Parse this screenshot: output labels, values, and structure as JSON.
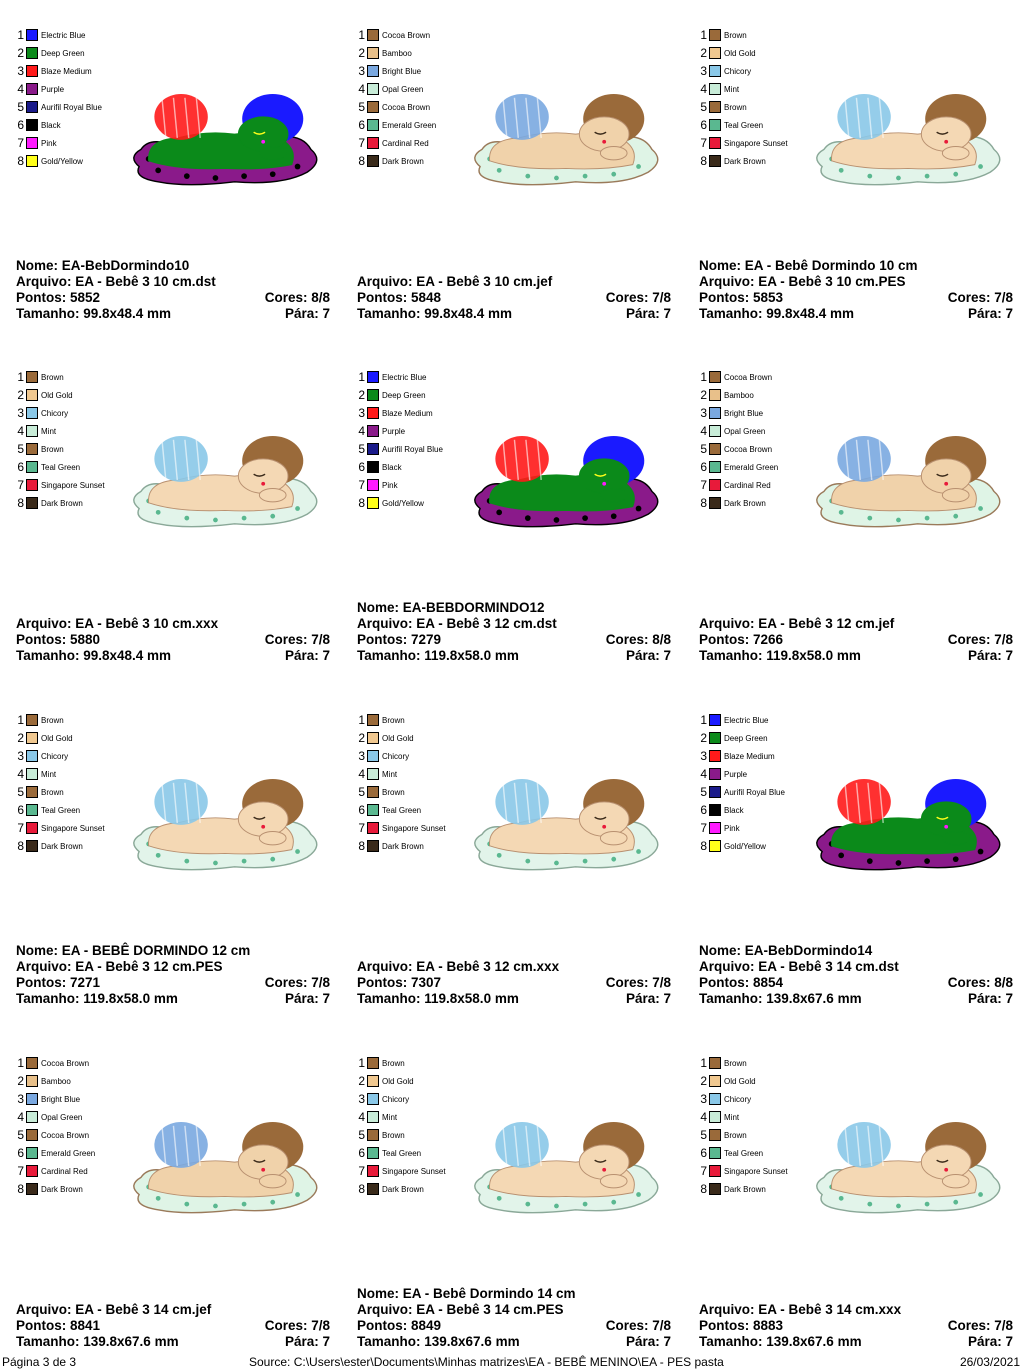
{
  "palettes": {
    "A": [
      {
        "name": "Electric Blue",
        "color": "#1a1aff"
      },
      {
        "name": "Deep Green",
        "color": "#0b8a1a"
      },
      {
        "name": "Blaze Medium",
        "color": "#ff1a1a"
      },
      {
        "name": "Purple",
        "color": "#8a1a8a"
      },
      {
        "name": "Aurifil Royal Blue",
        "color": "#1a1a8a"
      },
      {
        "name": "Black",
        "color": "#000000"
      },
      {
        "name": "Pink",
        "color": "#ff1aff"
      },
      {
        "name": "Gold/Yellow",
        "color": "#ffff1a"
      }
    ],
    "B": [
      {
        "name": "Cocoa Brown",
        "color": "#9a6a3a"
      },
      {
        "name": "Bamboo",
        "color": "#e8c08a"
      },
      {
        "name": "Bright Blue",
        "color": "#7aa8e0"
      },
      {
        "name": "Opal Green",
        "color": "#c8ecd8"
      },
      {
        "name": "Cocoa Brown",
        "color": "#9a6a3a"
      },
      {
        "name": "Emerald Green",
        "color": "#5ab890"
      },
      {
        "name": "Cardinal Red",
        "color": "#e81a3a"
      },
      {
        "name": "Dark Brown",
        "color": "#3a2a1a"
      }
    ],
    "C": [
      {
        "name": "Brown",
        "color": "#9a6a3a"
      },
      {
        "name": "Old Gold",
        "color": "#f0c890"
      },
      {
        "name": "Chicory",
        "color": "#8ac8e8"
      },
      {
        "name": "Mint",
        "color": "#c8ecd8"
      },
      {
        "name": "Brown",
        "color": "#9a6a3a"
      },
      {
        "name": "Teal Green",
        "color": "#5ab890"
      },
      {
        "name": "Singapore Sunset",
        "color": "#e81a3a"
      },
      {
        "name": "Dark Brown",
        "color": "#3a2a1a"
      }
    ]
  },
  "cells": [
    {
      "palette": "A",
      "lines": [
        {
          "l": "Nome: EA-BebDormindo10",
          "r": ""
        },
        {
          "l": "Arquivo: EA - Bebê 3 10 cm.dst",
          "r": ""
        },
        {
          "l": "Pontos: 5852",
          "r": "Cores: 8/8"
        },
        {
          "l": "Tamanho: 99.8x48.4 mm",
          "r": "Pára: 7"
        }
      ]
    },
    {
      "palette": "B",
      "lines": [
        {
          "l": "Arquivo: EA - Bebê 3 10 cm.jef",
          "r": ""
        },
        {
          "l": "Pontos: 5848",
          "r": "Cores: 7/8"
        },
        {
          "l": "Tamanho: 99.8x48.4 mm",
          "r": "Pára: 7"
        }
      ]
    },
    {
      "palette": "C",
      "lines": [
        {
          "l": "Nome: EA - Bebê Dormindo 10 cm",
          "r": ""
        },
        {
          "l": "Arquivo: EA - Bebê 3 10 cm.PES",
          "r": ""
        },
        {
          "l": "Pontos: 5853",
          "r": "Cores: 7/8"
        },
        {
          "l": "Tamanho: 99.8x48.4 mm",
          "r": "Pára: 7"
        }
      ]
    },
    {
      "palette": "C",
      "lines": [
        {
          "l": "Arquivo: EA - Bebê 3 10 cm.xxx",
          "r": ""
        },
        {
          "l": "Pontos: 5880",
          "r": "Cores: 7/8"
        },
        {
          "l": "Tamanho: 99.8x48.4 mm",
          "r": "Pára: 7"
        }
      ]
    },
    {
      "palette": "A",
      "lines": [
        {
          "l": "Nome: EA-BEBDORMINDO12",
          "r": ""
        },
        {
          "l": "Arquivo: EA - Bebê 3 12 cm.dst",
          "r": ""
        },
        {
          "l": "Pontos: 7279",
          "r": "Cores: 8/8"
        },
        {
          "l": "Tamanho: 119.8x58.0 mm",
          "r": "Pára: 7"
        }
      ]
    },
    {
      "palette": "B",
      "lines": [
        {
          "l": "Arquivo: EA - Bebê 3 12 cm.jef",
          "r": ""
        },
        {
          "l": "Pontos: 7266",
          "r": "Cores: 7/8"
        },
        {
          "l": "Tamanho: 119.8x58.0 mm",
          "r": "Pára: 7"
        }
      ]
    },
    {
      "palette": "C",
      "lines": [
        {
          "l": "Nome: EA - BEBÊ DORMINDO 12 cm",
          "r": ""
        },
        {
          "l": "Arquivo: EA - Bebê 3 12 cm.PES",
          "r": ""
        },
        {
          "l": "Pontos: 7271",
          "r": "Cores: 7/8"
        },
        {
          "l": "Tamanho: 119.8x58.0 mm",
          "r": "Pára: 7"
        }
      ]
    },
    {
      "palette": "C",
      "lines": [
        {
          "l": "Arquivo: EA - Bebê 3 12 cm.xxx",
          "r": ""
        },
        {
          "l": "Pontos: 7307",
          "r": "Cores: 7/8"
        },
        {
          "l": "Tamanho: 119.8x58.0 mm",
          "r": "Pára: 7"
        }
      ]
    },
    {
      "palette": "A",
      "lines": [
        {
          "l": "Nome: EA-BebDormindo14",
          "r": ""
        },
        {
          "l": "Arquivo: EA - Bebê 3 14 cm.dst",
          "r": ""
        },
        {
          "l": "Pontos: 8854",
          "r": "Cores: 8/8"
        },
        {
          "l": "Tamanho: 139.8x67.6 mm",
          "r": "Pára: 7"
        }
      ]
    },
    {
      "palette": "B",
      "lines": [
        {
          "l": "Arquivo: EA - Bebê 3 14 cm.jef",
          "r": ""
        },
        {
          "l": "Pontos: 8841",
          "r": "Cores: 7/8"
        },
        {
          "l": "Tamanho: 139.8x67.6 mm",
          "r": "Pára: 7"
        }
      ]
    },
    {
      "palette": "C",
      "lines": [
        {
          "l": "Nome: EA - Bebê Dormindo 14 cm",
          "r": ""
        },
        {
          "l": "Arquivo: EA - Bebê 3 14 cm.PES",
          "r": ""
        },
        {
          "l": "Pontos: 8849",
          "r": "Cores: 7/8"
        },
        {
          "l": "Tamanho: 139.8x67.6 mm",
          "r": "Pára: 7"
        }
      ]
    },
    {
      "palette": "C",
      "lines": [
        {
          "l": "Arquivo: EA - Bebê 3 14 cm.xxx",
          "r": ""
        },
        {
          "l": "Pontos: 8883",
          "r": "Cores: 7/8"
        },
        {
          "l": "Tamanho: 139.8x67.6 mm",
          "r": "Pára: 7"
        }
      ]
    }
  ],
  "footer": {
    "page": "Página 3 de 3",
    "source": "Source: C:\\Users\\ester\\Documents\\Minhas matrizes\\EA - BEBÊ MENINO\\EA - PES pasta",
    "date": "26/03/2021"
  }
}
